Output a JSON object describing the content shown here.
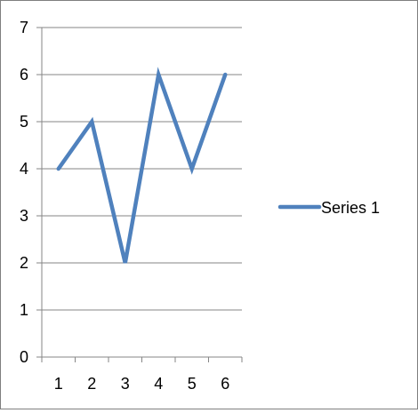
{
  "chart_data": {
    "type": "line",
    "categories": [
      "1",
      "2",
      "3",
      "4",
      "5",
      "6"
    ],
    "series": [
      {
        "name": "Series 1",
        "values": [
          4,
          5,
          2,
          6,
          4,
          6
        ],
        "color": "#4f81bd"
      }
    ],
    "title": "",
    "xlabel": "",
    "ylabel": "",
    "ylim": [
      0,
      7
    ],
    "yticks": [
      "0",
      "1",
      "2",
      "3",
      "4",
      "5",
      "6",
      "7"
    ],
    "grid": "horizontal",
    "legend": "right",
    "gridColor": "#868686",
    "axisColor": "#868686"
  }
}
